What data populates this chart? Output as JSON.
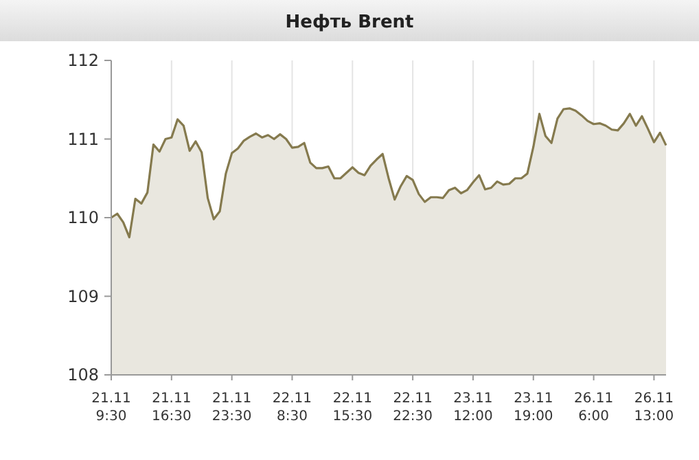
{
  "chart_data": {
    "type": "area",
    "title": "Нефть Brent",
    "categories": [
      "21.11\n9:30",
      null,
      null,
      null,
      null,
      null,
      null,
      null,
      null,
      null,
      "21.11\n16:30",
      null,
      null,
      null,
      null,
      null,
      null,
      null,
      null,
      null,
      "21.11\n23:30",
      null,
      null,
      null,
      null,
      null,
      null,
      null,
      null,
      null,
      "22.11\n8:30",
      null,
      null,
      null,
      null,
      null,
      null,
      null,
      null,
      null,
      "22.11\n15:30",
      null,
      null,
      null,
      null,
      null,
      null,
      null,
      null,
      null,
      "22.11\n22:30",
      null,
      null,
      null,
      null,
      null,
      null,
      null,
      null,
      null,
      "23.11\n12:00",
      null,
      null,
      null,
      null,
      null,
      null,
      null,
      null,
      null,
      "23.11\n19:00",
      null,
      null,
      null,
      null,
      null,
      null,
      null,
      null,
      null,
      "26.11\n6:00",
      null,
      null,
      null,
      null,
      null,
      null,
      null,
      null,
      null,
      "26.11\n13:00",
      null,
      null
    ],
    "series": [
      {
        "color": "#857a4e",
        "values": [
          110.0,
          110.05,
          109.94,
          109.75,
          110.24,
          110.18,
          110.32,
          110.93,
          110.84,
          111.0,
          111.02,
          111.25,
          111.17,
          110.85,
          110.97,
          110.83,
          110.25,
          109.98,
          110.08,
          110.56,
          110.82,
          110.88,
          110.98,
          111.03,
          111.07,
          111.02,
          111.05,
          111.0,
          111.06,
          111.0,
          110.89,
          110.9,
          110.95,
          110.7,
          110.63,
          110.63,
          110.65,
          110.5,
          110.5,
          110.57,
          110.64,
          110.57,
          110.54,
          110.66,
          110.74,
          110.81,
          110.5,
          110.23,
          110.4,
          110.53,
          110.48,
          110.3,
          110.2,
          110.26,
          110.26,
          110.25,
          110.35,
          110.38,
          110.31,
          110.35,
          110.45,
          110.54,
          110.36,
          110.38,
          110.46,
          110.42,
          110.43,
          110.5,
          110.5,
          110.56,
          110.9,
          111.32,
          111.04,
          110.95,
          111.26,
          111.38,
          111.39,
          111.36,
          111.3,
          111.23,
          111.19,
          111.2,
          111.17,
          111.12,
          111.11,
          111.2,
          111.32,
          111.17,
          111.29,
          111.13,
          110.96,
          111.08,
          110.92
        ]
      }
    ],
    "ylim": [
      108,
      112
    ],
    "yticks": [
      108,
      109,
      110,
      111,
      112
    ],
    "grid": "x"
  }
}
